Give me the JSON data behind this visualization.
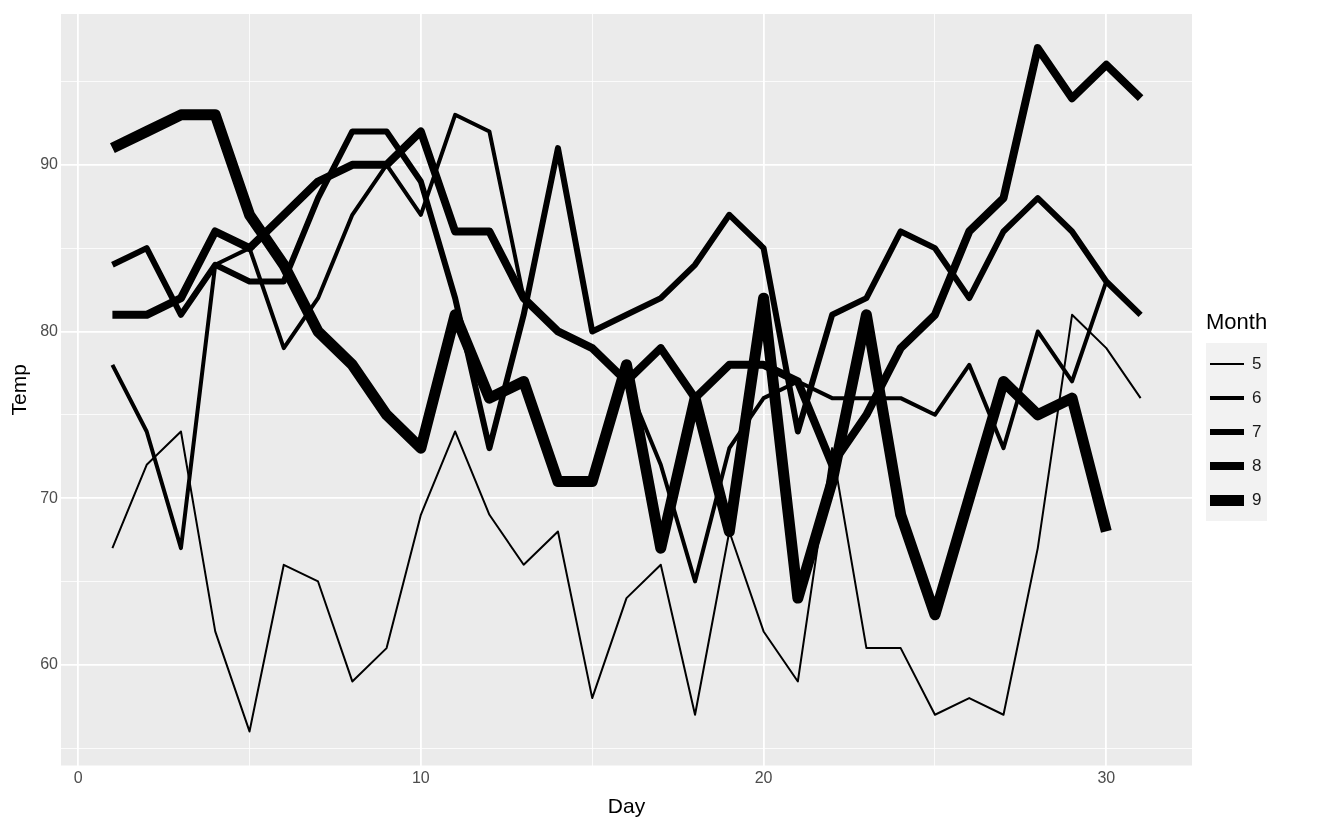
{
  "chart_data": {
    "type": "line",
    "xlabel": "Day",
    "ylabel": "Temp",
    "legend_title": "Month",
    "legend": "right",
    "grid": true,
    "marker": "none",
    "line_style": "solid",
    "x": [
      1,
      2,
      3,
      4,
      5,
      6,
      7,
      8,
      9,
      10,
      11,
      12,
      13,
      14,
      15,
      16,
      17,
      18,
      19,
      20,
      21,
      22,
      23,
      24,
      25,
      26,
      27,
      28,
      29,
      30,
      31
    ],
    "xlim": [
      -0.5,
      32.5
    ],
    "xticks": [
      0,
      {
        "value": 5,
        "label": null
      },
      10,
      {
        "value": 15,
        "label": null
      },
      20,
      {
        "value": 25,
        "label": null
      },
      30
    ],
    "ylim": [
      53.95,
      99.05
    ],
    "yticks": [
      {
        "value": 55,
        "label": null
      },
      60,
      {
        "value": 65,
        "label": null
      },
      70,
      {
        "value": 75,
        "label": null
      },
      80,
      {
        "value": 85,
        "label": null
      },
      90,
      {
        "value": 95,
        "label": null
      }
    ],
    "series": [
      {
        "name": "5",
        "color": "#000000",
        "values": [
          67,
          72,
          74,
          62,
          56,
          66,
          65,
          59,
          61,
          69,
          74,
          69,
          66,
          68,
          58,
          64,
          66,
          57,
          68,
          62,
          59,
          73,
          61,
          61,
          57,
          58,
          57,
          67,
          81,
          79,
          76
        ]
      },
      {
        "name": "6",
        "color": "#000000",
        "x": [
          1,
          2,
          3,
          4,
          5,
          6,
          7,
          8,
          9,
          10,
          11,
          12,
          13,
          14,
          15,
          16,
          17,
          18,
          19,
          20,
          21,
          22,
          23,
          24,
          25,
          26,
          27,
          28,
          29,
          30
        ],
        "values": [
          78,
          74,
          67,
          84,
          85,
          79,
          82,
          87,
          90,
          87,
          93,
          92,
          82,
          80,
          79,
          77,
          72,
          65,
          73,
          76,
          77,
          76,
          76,
          76,
          75,
          78,
          73,
          80,
          77,
          83
        ]
      },
      {
        "name": "7",
        "color": "#000000",
        "values": [
          84,
          85,
          81,
          84,
          83,
          83,
          88,
          92,
          92,
          89,
          82,
          73,
          81,
          91,
          80,
          81,
          82,
          84,
          87,
          85,
          74,
          81,
          82,
          86,
          85,
          82,
          86,
          88,
          86,
          83,
          81
        ]
      },
      {
        "name": "8",
        "color": "#000000",
        "values": [
          81,
          81,
          82,
          86,
          85,
          87,
          89,
          90,
          90,
          92,
          86,
          86,
          82,
          80,
          79,
          77,
          79,
          76,
          78,
          78,
          77,
          72,
          75,
          79,
          81,
          86,
          88,
          97,
          94,
          96,
          94
        ]
      },
      {
        "name": "9",
        "color": "#000000",
        "x": [
          1,
          2,
          3,
          4,
          5,
          6,
          7,
          8,
          9,
          10,
          11,
          12,
          13,
          14,
          15,
          16,
          17,
          18,
          19,
          20,
          21,
          22,
          23,
          24,
          25,
          26,
          27,
          28,
          29,
          30
        ],
        "values": [
          91,
          92,
          93,
          93,
          87,
          84,
          80,
          78,
          75,
          73,
          81,
          76,
          77,
          71,
          71,
          78,
          67,
          76,
          68,
          82,
          64,
          71,
          81,
          69,
          63,
          70,
          77,
          75,
          76,
          68
        ]
      }
    ]
  }
}
